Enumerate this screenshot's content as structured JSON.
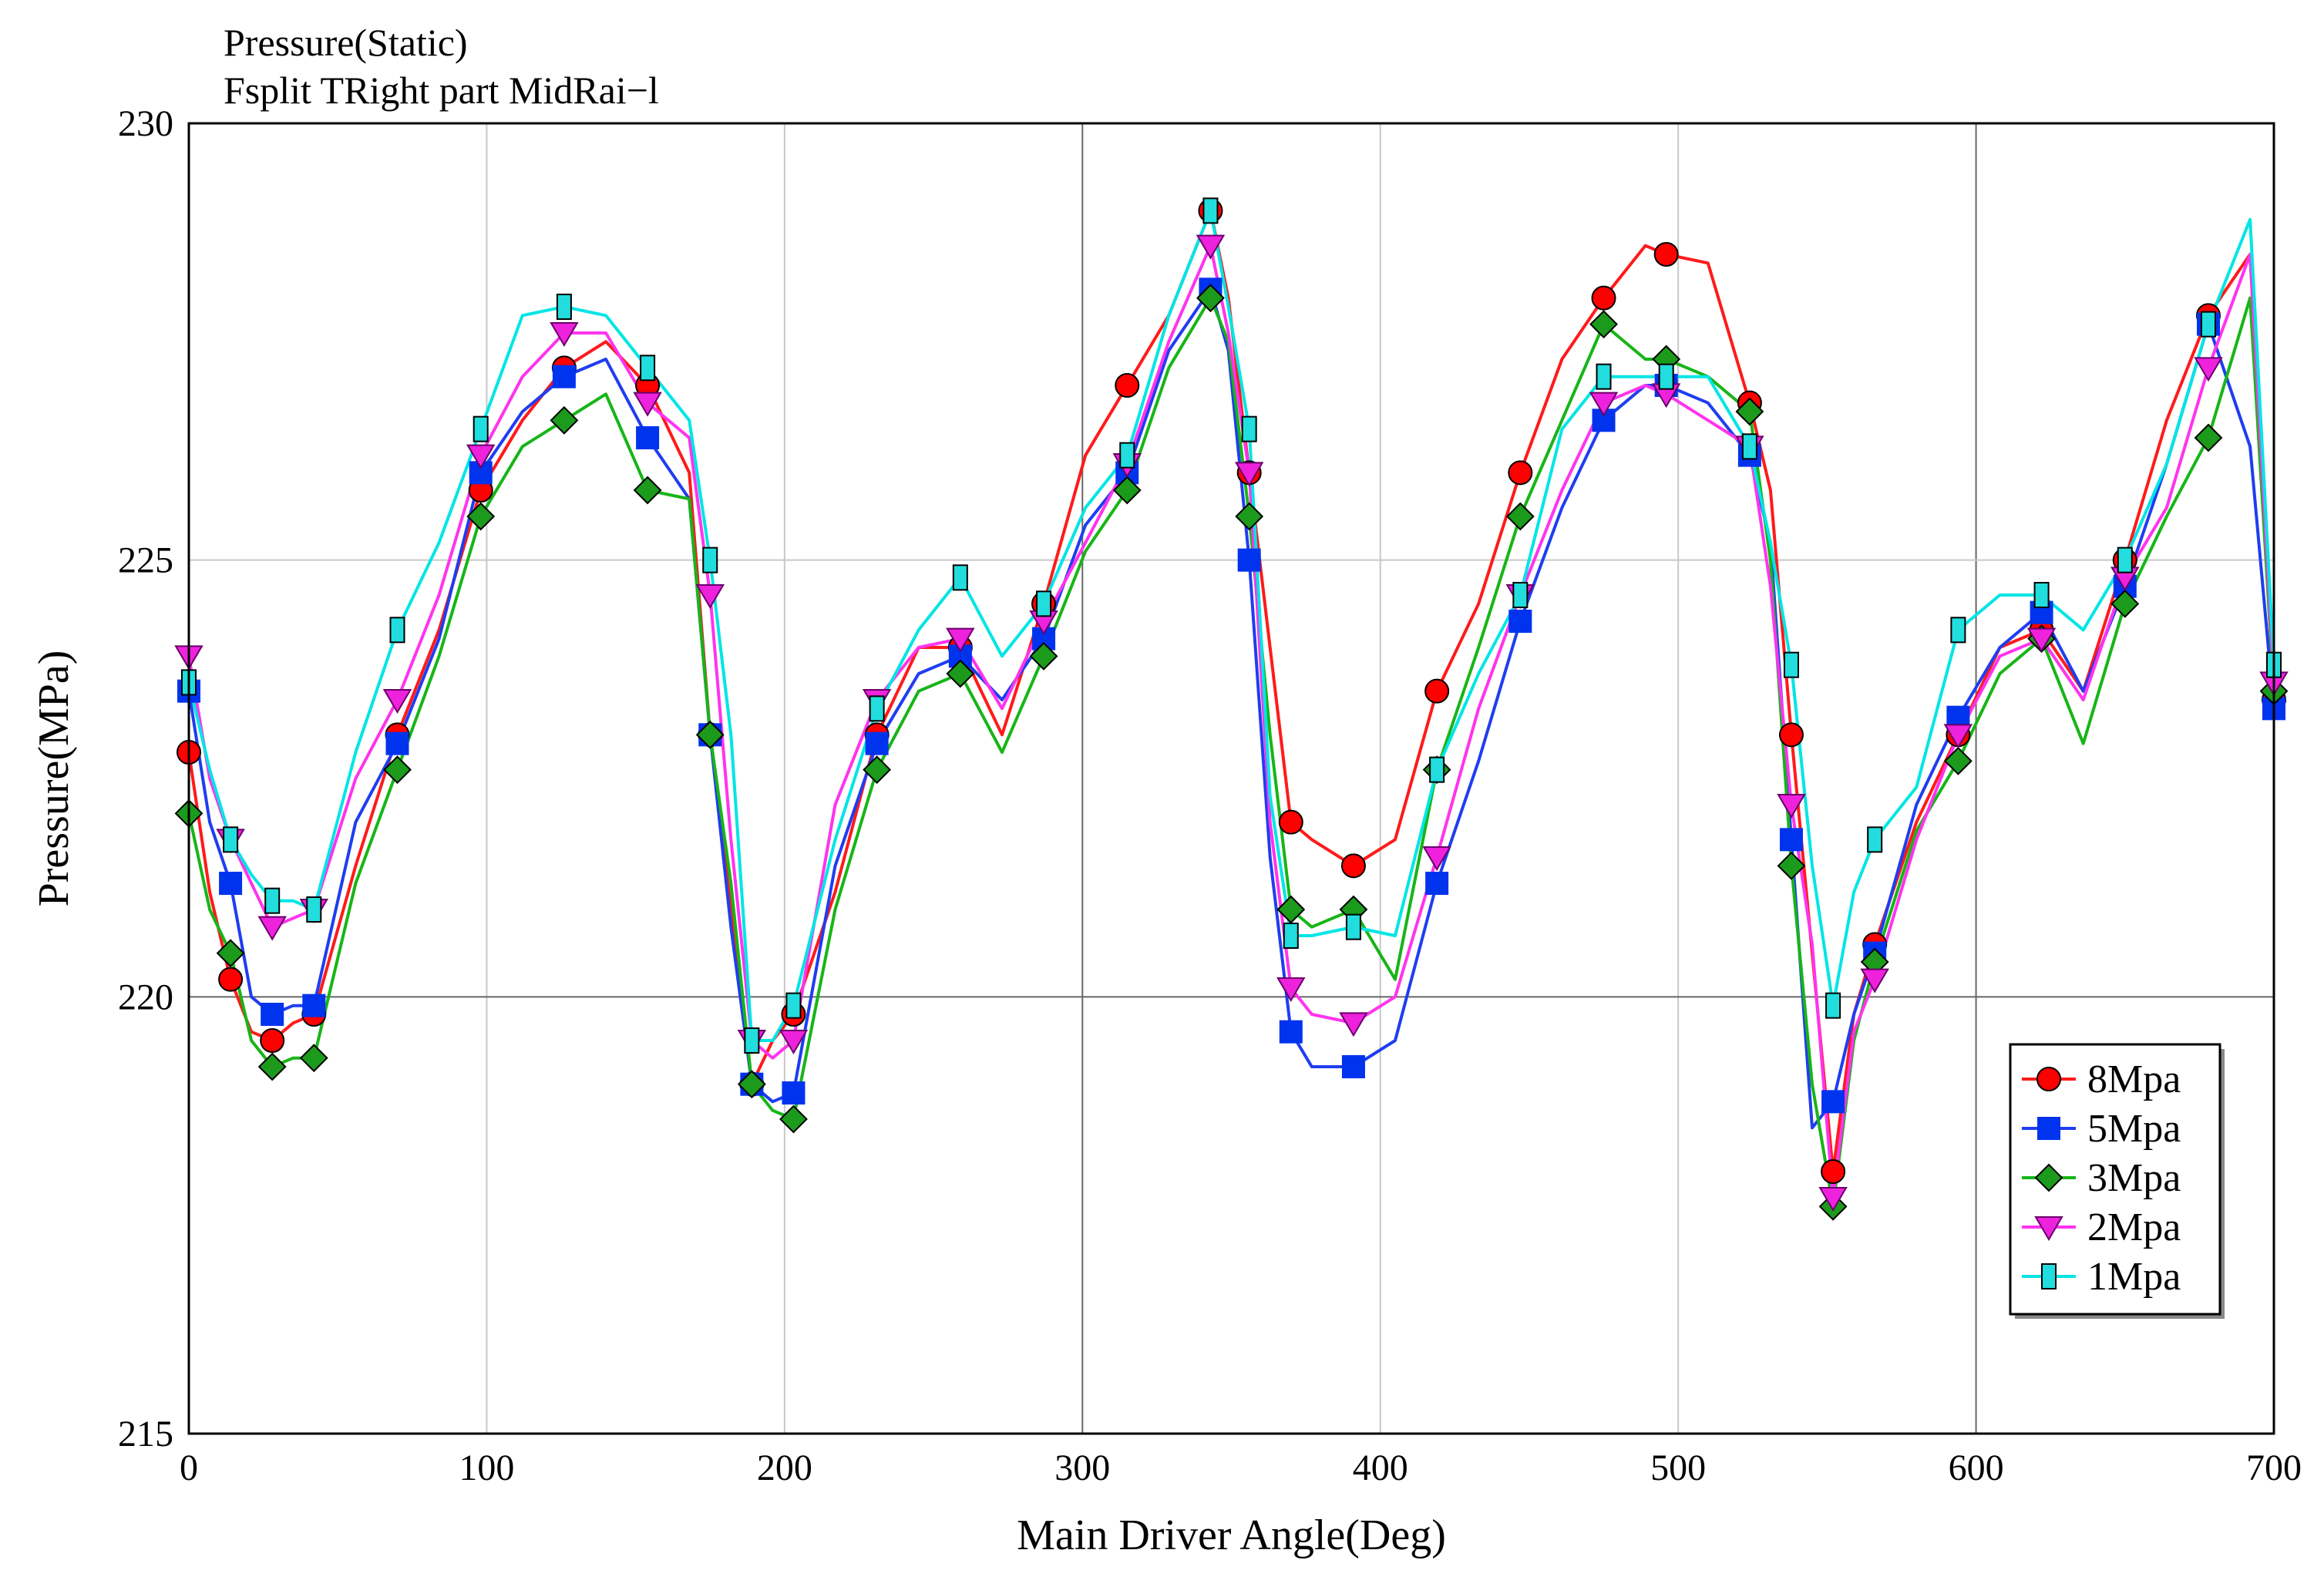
{
  "chart_data": {
    "type": "line",
    "title": "Pressure(Static)",
    "subtitle": "Fsplit TRight part MidRai−l",
    "xlabel": "Main Driver Angle(Deg)",
    "ylabel": "Pressure(MPa)",
    "xlim": [
      0,
      700
    ],
    "ylim": [
      215,
      230
    ],
    "xticks": [
      "0",
      "100",
      "200",
      "300",
      "400",
      "500",
      "600",
      "700"
    ],
    "yticks": [
      "215",
      "220",
      "225",
      "230"
    ],
    "grid": true,
    "legend_position": "bottom-right",
    "series": [
      {
        "name": "8Mpa",
        "color": "#ff1a1a",
        "marker": "circle",
        "marker_color": "#ff0000",
        "x": [
          0,
          7,
          14,
          21,
          28,
          35,
          42,
          56,
          70,
          84,
          98,
          112,
          126,
          140,
          154,
          168,
          175,
          182,
          189,
          196,
          203,
          217,
          231,
          245,
          259,
          273,
          287,
          301,
          315,
          329,
          343,
          349,
          356,
          363,
          370,
          377,
          391,
          405,
          419,
          433,
          447,
          461,
          475,
          489,
          496,
          510,
          524,
          531,
          538,
          545,
          552,
          559,
          566,
          580,
          594,
          608,
          622,
          636,
          650,
          664,
          678,
          692,
          700
        ],
        "y": [
          222.8,
          221.2,
          220.2,
          219.6,
          219.5,
          219.7,
          219.8,
          221.5,
          223.0,
          224.2,
          225.8,
          226.6,
          227.2,
          227.5,
          227.0,
          226.0,
          223.0,
          221.0,
          219.0,
          219.5,
          219.8,
          221.2,
          223.0,
          224.0,
          224.0,
          223.0,
          224.5,
          226.2,
          227.0,
          227.8,
          229.0,
          228.0,
          226.0,
          224.0,
          222.0,
          221.8,
          221.5,
          221.8,
          223.5,
          224.5,
          226.0,
          227.3,
          228.0,
          228.6,
          228.5,
          228.4,
          226.8,
          225.8,
          223.0,
          220.5,
          218.0,
          219.8,
          220.6,
          222.0,
          223.0,
          224.0,
          224.2,
          223.5,
          225.0,
          226.6,
          227.8,
          228.5,
          223.4
        ]
      },
      {
        "name": "5Mpa",
        "color": "#1f3df0",
        "marker": "square",
        "marker_color": "#0033ee",
        "x": [
          0,
          7,
          14,
          21,
          28,
          35,
          42,
          56,
          70,
          84,
          98,
          112,
          126,
          140,
          154,
          168,
          175,
          182,
          189,
          196,
          203,
          217,
          231,
          245,
          259,
          273,
          287,
          301,
          315,
          329,
          343,
          349,
          356,
          363,
          370,
          377,
          391,
          405,
          419,
          433,
          447,
          461,
          475,
          489,
          496,
          510,
          524,
          531,
          538,
          545,
          552,
          559,
          566,
          580,
          594,
          608,
          622,
          636,
          650,
          664,
          678,
          692,
          700
        ],
        "y": [
          223.5,
          222.0,
          221.3,
          220.0,
          219.8,
          219.9,
          219.9,
          222.0,
          222.9,
          224.1,
          226.0,
          226.7,
          227.1,
          227.3,
          226.4,
          225.7,
          223.0,
          220.8,
          219.0,
          218.8,
          218.9,
          221.5,
          222.9,
          223.7,
          223.9,
          223.4,
          224.1,
          225.4,
          226.0,
          227.4,
          228.1,
          227.4,
          225.0,
          221.6,
          219.6,
          219.2,
          219.2,
          219.5,
          221.3,
          222.7,
          224.3,
          225.6,
          226.6,
          227.0,
          227.0,
          226.8,
          226.2,
          225.2,
          221.8,
          218.5,
          218.8,
          219.8,
          220.5,
          222.2,
          223.2,
          224.0,
          224.4,
          223.5,
          224.7,
          226.1,
          227.7,
          226.3,
          223.3
        ]
      },
      {
        "name": "3Mpa",
        "color": "#17b517",
        "marker": "diamond",
        "marker_color": "#1c9a1c",
        "x": [
          0,
          7,
          14,
          21,
          28,
          35,
          42,
          56,
          70,
          84,
          98,
          112,
          126,
          140,
          154,
          168,
          175,
          182,
          189,
          196,
          203,
          217,
          231,
          245,
          259,
          273,
          287,
          301,
          315,
          329,
          343,
          349,
          356,
          363,
          370,
          377,
          391,
          405,
          419,
          433,
          447,
          461,
          475,
          489,
          496,
          510,
          524,
          531,
          538,
          545,
          552,
          559,
          566,
          580,
          594,
          608,
          622,
          636,
          650,
          664,
          678,
          692,
          700
        ],
        "y": [
          222.1,
          221.0,
          220.5,
          219.5,
          219.2,
          219.3,
          219.3,
          221.3,
          222.6,
          223.9,
          225.5,
          226.3,
          226.6,
          226.9,
          225.8,
          225.7,
          223.0,
          221.3,
          219.0,
          218.7,
          218.6,
          221.0,
          222.6,
          223.5,
          223.7,
          222.8,
          223.9,
          225.1,
          225.8,
          227.2,
          228.0,
          227.5,
          225.5,
          223.0,
          221.0,
          220.8,
          221.0,
          220.2,
          222.6,
          224.0,
          225.5,
          226.6,
          227.7,
          227.3,
          227.3,
          227.1,
          226.7,
          225.0,
          221.5,
          219.0,
          217.6,
          219.5,
          220.4,
          221.9,
          222.7,
          223.7,
          224.1,
          222.9,
          224.5,
          225.5,
          226.4,
          228.0,
          223.5
        ]
      },
      {
        "name": "2Mpa",
        "color": "#ff33ee",
        "marker": "triangle-down",
        "marker_color": "#ee22dd",
        "x": [
          0,
          7,
          14,
          21,
          28,
          35,
          42,
          56,
          70,
          84,
          98,
          112,
          126,
          140,
          154,
          168,
          175,
          182,
          189,
          196,
          203,
          217,
          231,
          245,
          259,
          273,
          287,
          301,
          315,
          329,
          343,
          349,
          356,
          363,
          370,
          377,
          391,
          405,
          419,
          433,
          447,
          461,
          475,
          489,
          496,
          510,
          524,
          531,
          538,
          545,
          552,
          559,
          566,
          580,
          594,
          608,
          622,
          636,
          650,
          664,
          678,
          692,
          700
        ],
        "y": [
          223.9,
          222.5,
          221.8,
          221.3,
          220.8,
          220.9,
          221.0,
          222.5,
          223.4,
          224.6,
          226.2,
          227.1,
          227.6,
          227.6,
          226.8,
          226.4,
          224.6,
          221.8,
          219.5,
          219.3,
          219.5,
          222.2,
          223.4,
          224.0,
          224.1,
          223.3,
          224.3,
          225.2,
          226.1,
          227.5,
          228.6,
          227.6,
          226.0,
          222.0,
          220.1,
          219.8,
          219.7,
          220.0,
          221.6,
          223.3,
          224.6,
          225.8,
          226.8,
          227.0,
          226.9,
          226.6,
          226.3,
          224.7,
          222.2,
          220.6,
          217.7,
          219.6,
          220.2,
          221.8,
          223.0,
          223.9,
          224.1,
          223.4,
          224.8,
          225.6,
          227.2,
          228.5,
          223.6
        ]
      },
      {
        "name": "1Mpa",
        "color": "#00e5e5",
        "marker": "bar",
        "marker_color": "#22dddd",
        "x": [
          0,
          7,
          14,
          21,
          28,
          35,
          42,
          56,
          70,
          84,
          98,
          112,
          126,
          140,
          154,
          168,
          175,
          182,
          189,
          196,
          203,
          217,
          231,
          245,
          259,
          273,
          287,
          301,
          315,
          329,
          343,
          349,
          356,
          363,
          370,
          377,
          391,
          405,
          419,
          433,
          447,
          461,
          475,
          489,
          496,
          510,
          524,
          531,
          538,
          545,
          552,
          559,
          566,
          580,
          594,
          608,
          622,
          636,
          650,
          664,
          678,
          692,
          700
        ],
        "y": [
          223.6,
          222.6,
          221.8,
          221.4,
          221.1,
          221.1,
          221.0,
          222.8,
          224.2,
          225.2,
          226.5,
          227.8,
          227.9,
          227.8,
          227.2,
          226.6,
          225.0,
          223.0,
          219.5,
          219.5,
          219.9,
          221.8,
          223.3,
          224.2,
          224.8,
          223.9,
          224.5,
          225.6,
          226.2,
          227.8,
          229.0,
          227.9,
          226.5,
          222.3,
          220.7,
          220.7,
          220.8,
          220.7,
          222.6,
          223.7,
          224.6,
          226.5,
          227.1,
          227.1,
          227.1,
          227.1,
          226.3,
          225.2,
          223.8,
          221.5,
          219.9,
          221.2,
          221.8,
          222.4,
          224.2,
          224.6,
          224.6,
          224.2,
          225.0,
          226.1,
          227.7,
          228.9,
          223.8
        ]
      }
    ]
  }
}
